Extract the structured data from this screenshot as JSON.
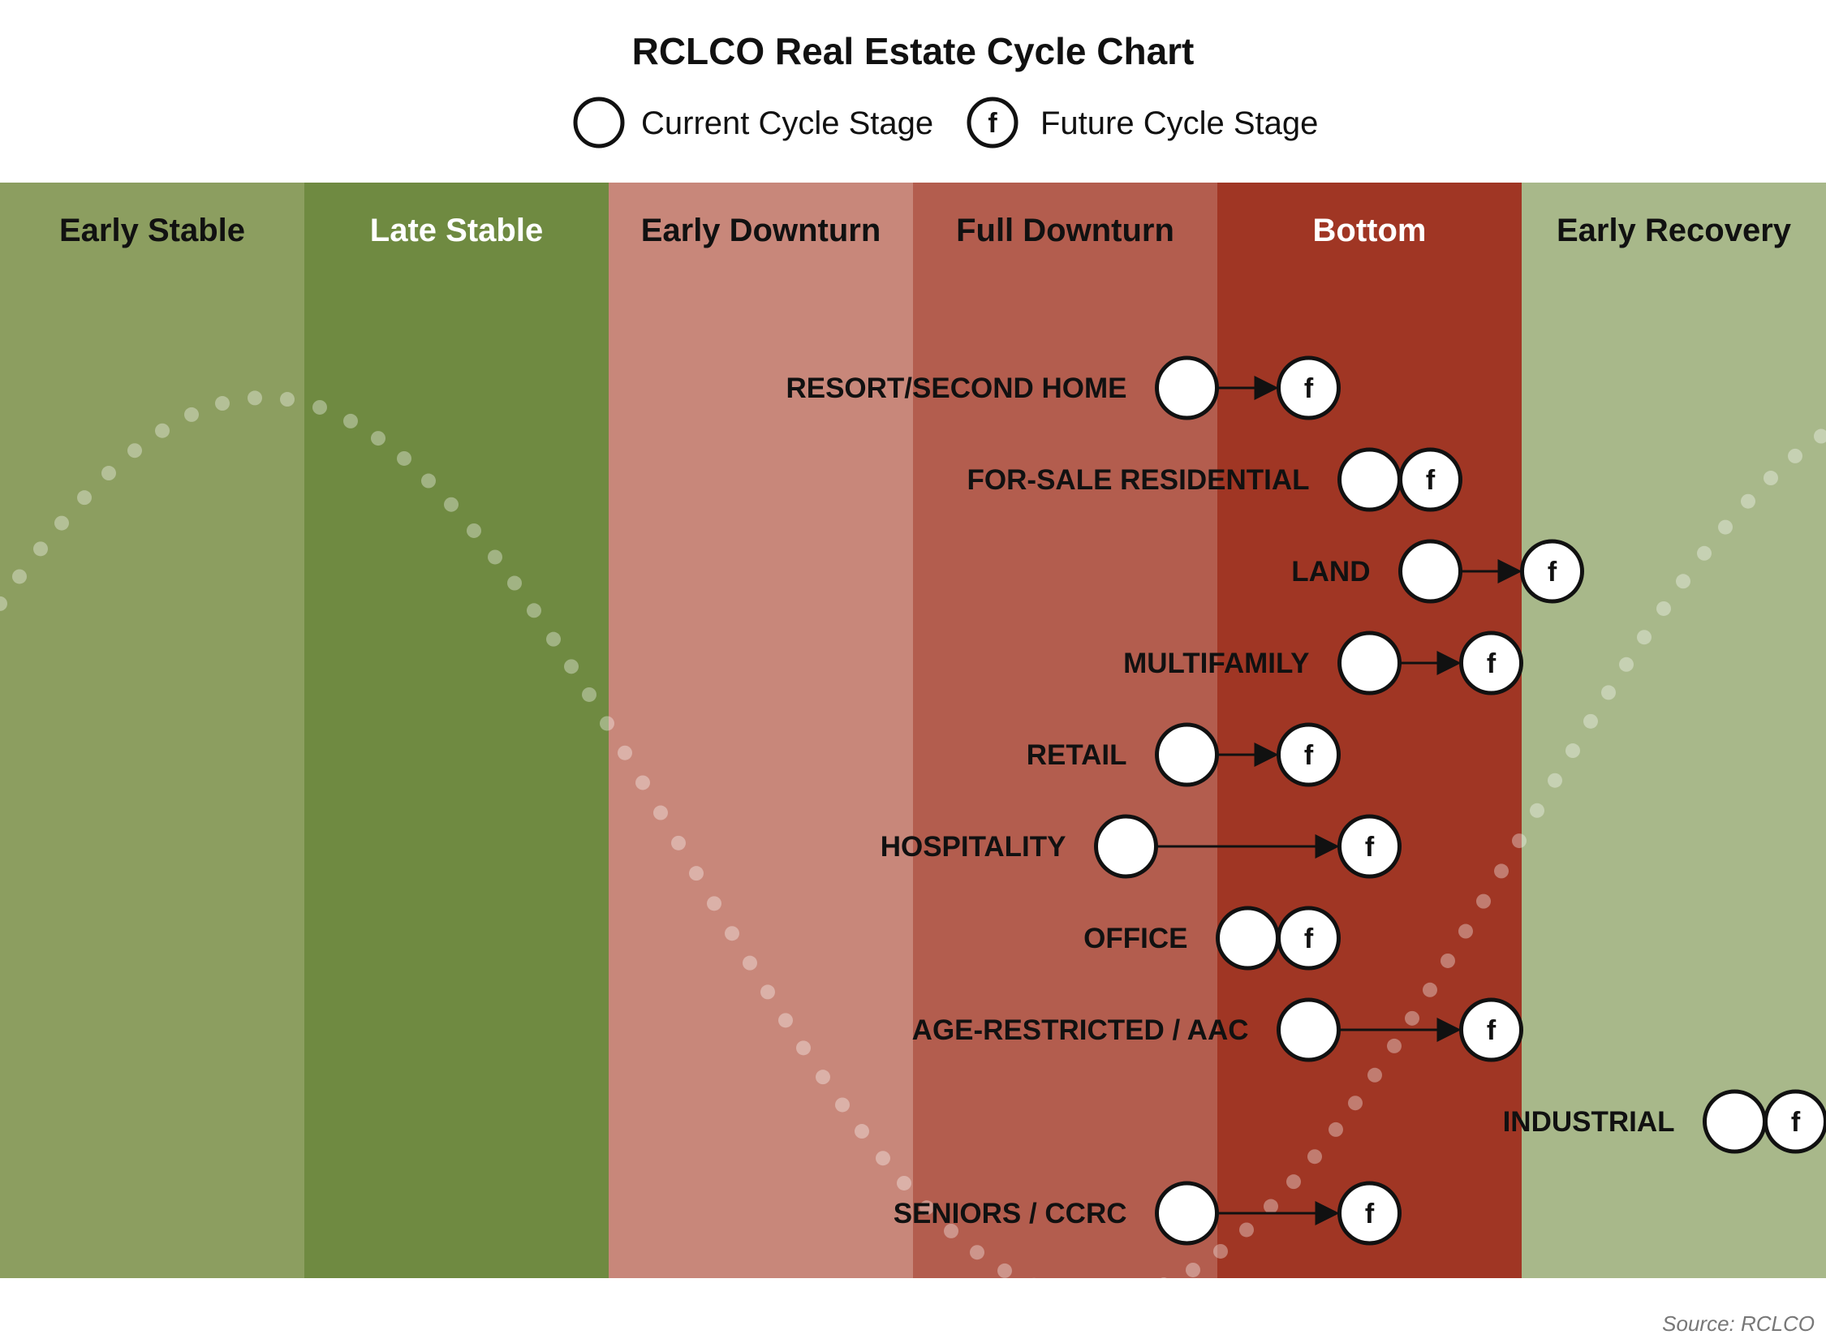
{
  "chart_data": {
    "type": "cycle-position",
    "title": "RCLCO Real Estate Cycle Chart",
    "legend": {
      "current_label": "Current Cycle Stage",
      "future_label": "Future Cycle Stage",
      "future_marker_letter": "f",
      "placement": "top-center"
    },
    "stages": [
      {
        "name": "Early Stable",
        "color": "#8c9e60",
        "label_color": "#111111"
      },
      {
        "name": "Late Stable",
        "color": "#6f8a41",
        "label_color": "#ffffff"
      },
      {
        "name": "Early Downturn",
        "color": "#c8877a",
        "label_color": "#111111"
      },
      {
        "name": "Full Downturn",
        "color": "#b35d4e",
        "label_color": "#111111"
      },
      {
        "name": "Bottom",
        "color": "#a03624",
        "label_color": "#ffffff"
      },
      {
        "name": "Early Recovery",
        "color": "#a8b88a",
        "label_color": "#111111"
      }
    ],
    "stage_axis_note": "positions expressed in stage units: 0 = left edge of Early Stable, 6 = right edge of Early Recovery",
    "sectors": [
      {
        "name": "RESORT/SECOND HOME",
        "current": 3.9,
        "future": 4.3
      },
      {
        "name": "FOR-SALE RESIDENTIAL",
        "current": 4.5,
        "future": 4.7
      },
      {
        "name": "LAND",
        "current": 4.7,
        "future": 5.1
      },
      {
        "name": "MULTIFAMILY",
        "current": 4.5,
        "future": 4.9
      },
      {
        "name": "RETAIL",
        "current": 3.9,
        "future": 4.3
      },
      {
        "name": "HOSPITALITY",
        "current": 3.7,
        "future": 4.5
      },
      {
        "name": "OFFICE",
        "current": 4.1,
        "future": 4.3
      },
      {
        "name": "AGE-RESTRICTED / AAC",
        "current": 4.3,
        "future": 4.9
      },
      {
        "name": "INDUSTRIAL",
        "current": 5.7,
        "future": 5.9
      },
      {
        "name": "SENIORS / CCRC",
        "current": 3.9,
        "future": 4.5
      }
    ],
    "source": "Source: RCLCO"
  }
}
